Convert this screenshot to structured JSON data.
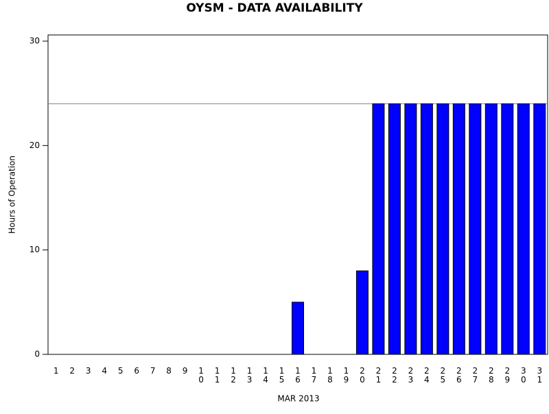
{
  "chart_data": {
    "type": "bar",
    "title": "OYSM - DATA AVAILABILITY",
    "x_label": "MAR 2013",
    "y_label": "Hours of Operation",
    "categories": [
      "1",
      "2",
      "3",
      "4",
      "5",
      "6",
      "7",
      "8",
      "9",
      "10",
      "11",
      "12",
      "13",
      "14",
      "15",
      "16",
      "17",
      "18",
      "19",
      "20",
      "21",
      "22",
      "23",
      "24",
      "25",
      "26",
      "27",
      "28",
      "29",
      "30",
      "31"
    ],
    "values": [
      0,
      0,
      0,
      0,
      0,
      0,
      0,
      0,
      0,
      0,
      0,
      0,
      0,
      0,
      0,
      5,
      0,
      0,
      0,
      8,
      24,
      24,
      24,
      24,
      24,
      24,
      24,
      24,
      24,
      24,
      24
    ],
    "color": "#0000ff",
    "reference_line": 24,
    "reference_color": "#808080",
    "ylim": [
      0,
      30
    ],
    "yticks": [
      0,
      10,
      20,
      30
    ]
  }
}
